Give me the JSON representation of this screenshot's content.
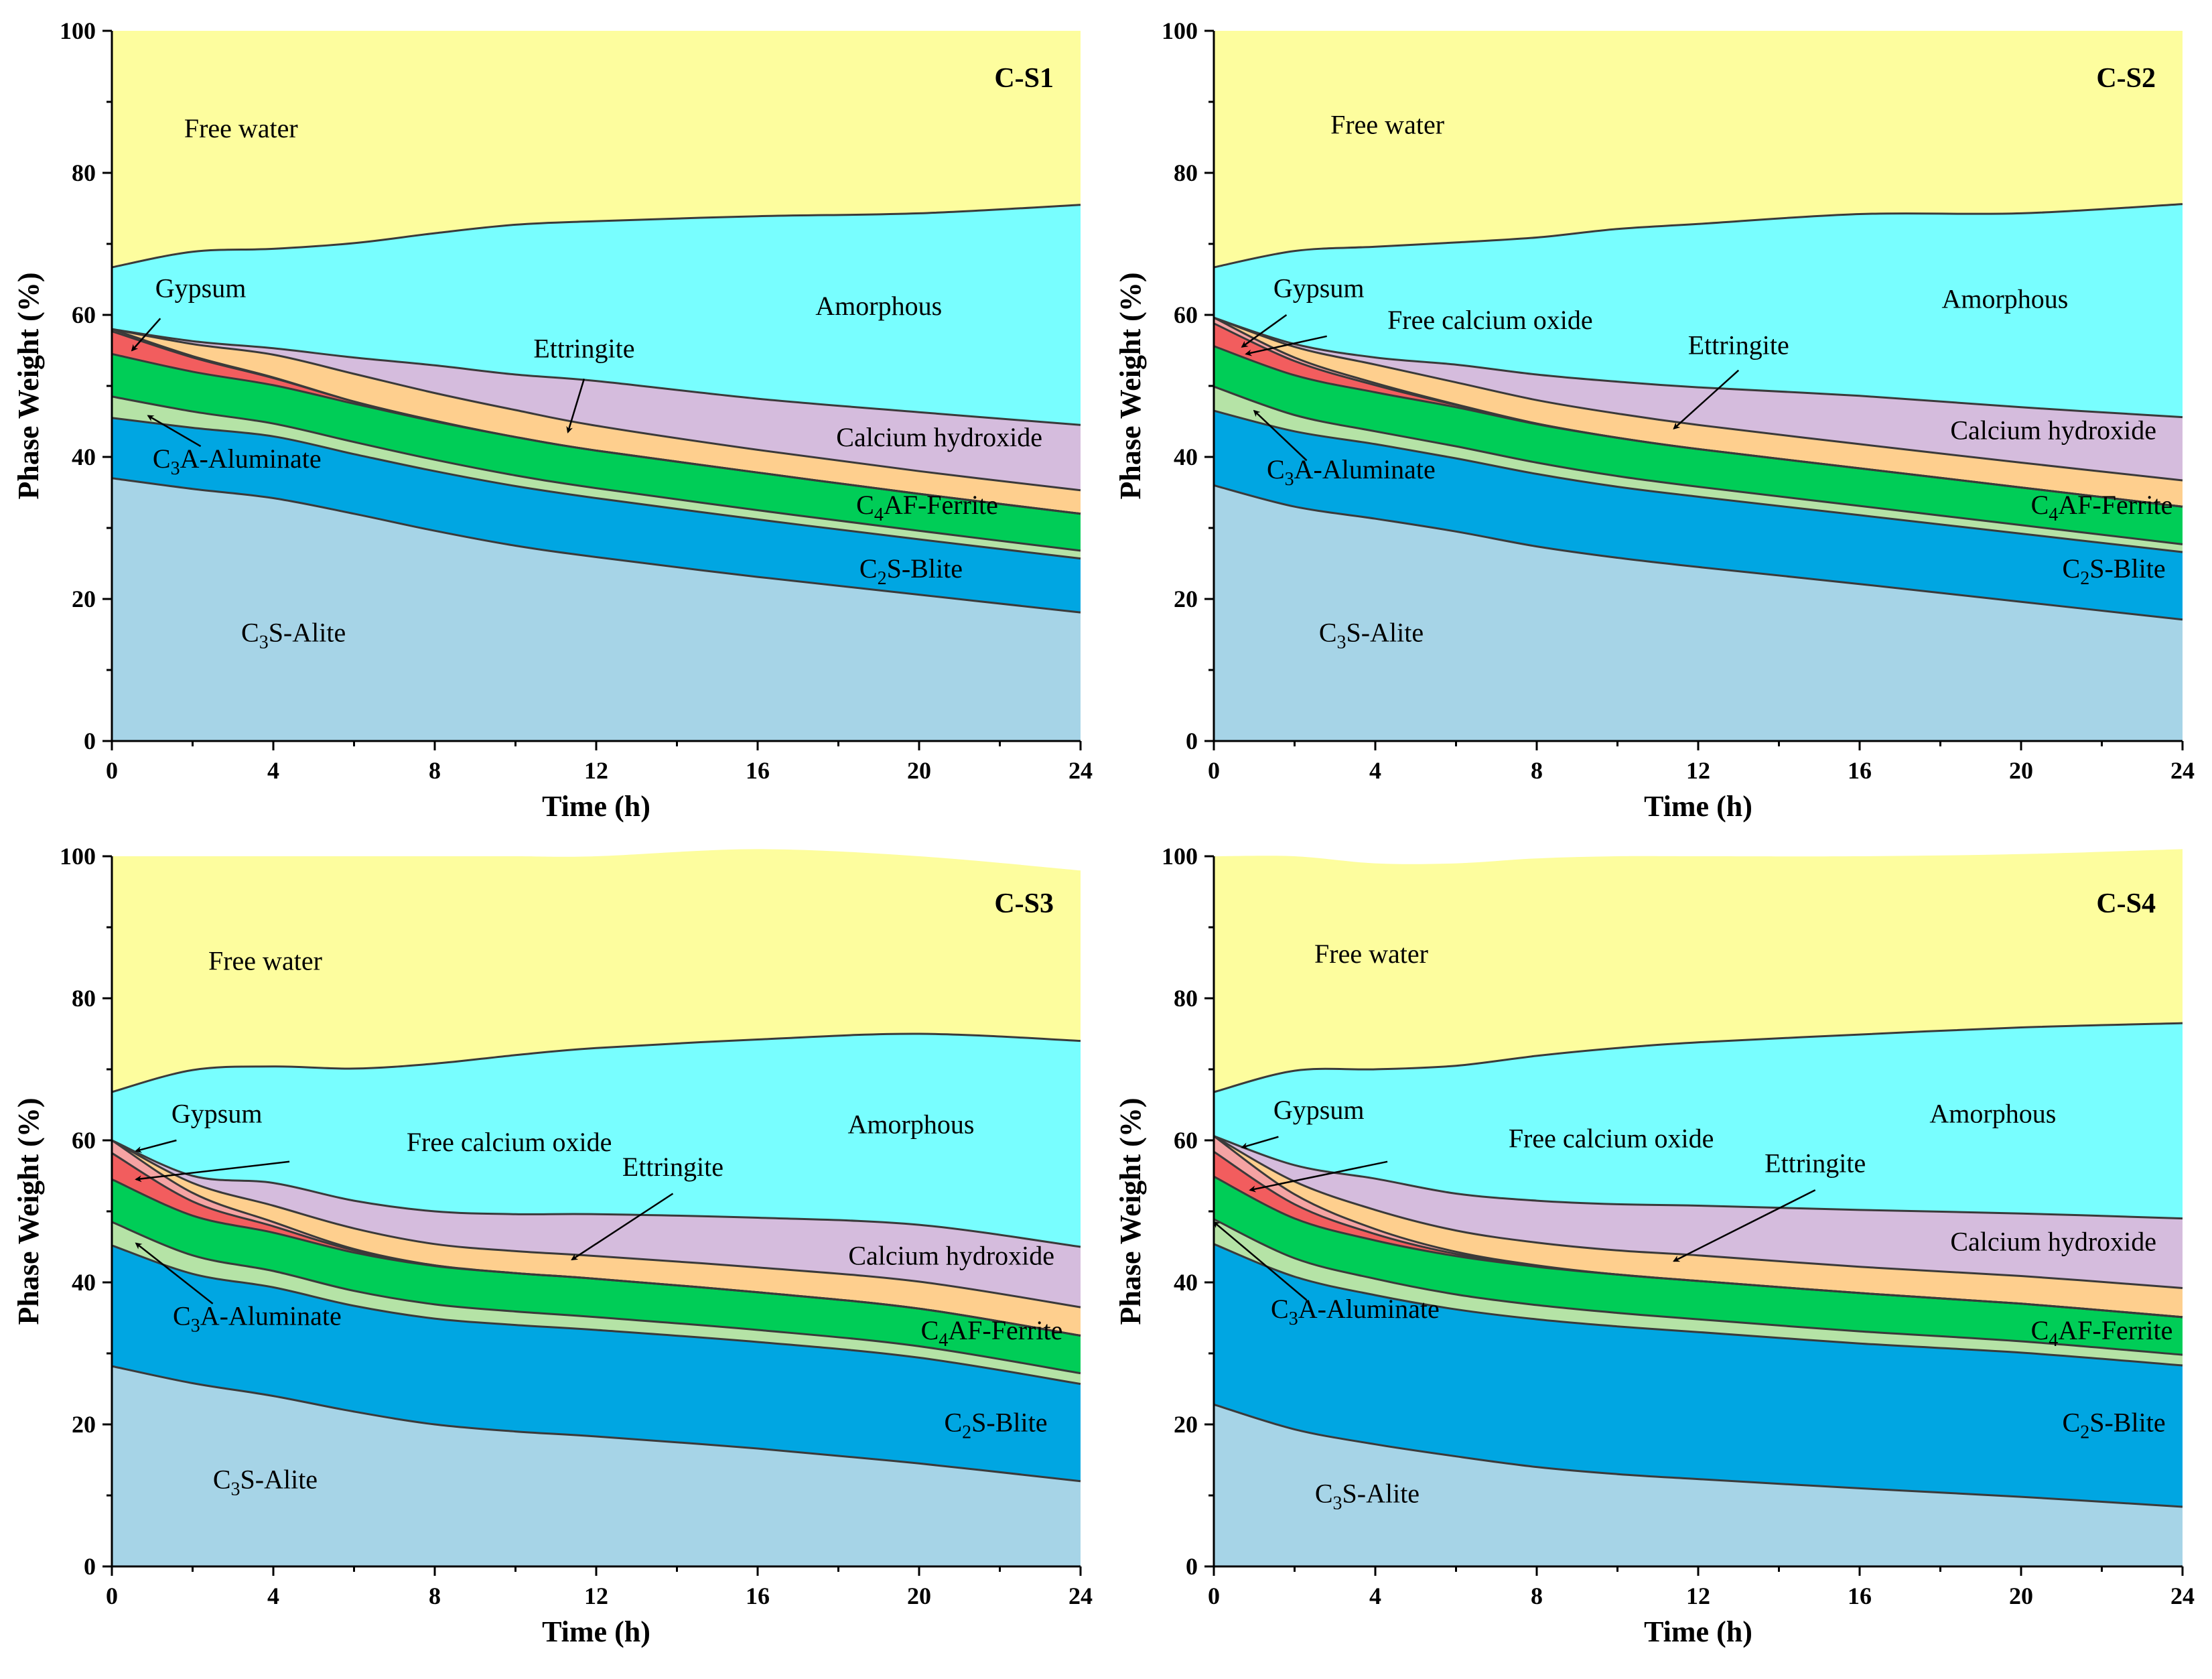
{
  "chart_data": [
    {
      "type": "area",
      "title": "C-S1",
      "xlabel": "Time (h)",
      "ylabel": "Phase Weight (%)",
      "xlim": [
        0,
        24
      ],
      "ylim": [
        0,
        100
      ],
      "xticks": [
        0,
        4,
        8,
        12,
        16,
        20,
        24
      ],
      "yticks": [
        0,
        20,
        40,
        60,
        80,
        100
      ],
      "x": [
        0,
        2,
        4,
        6,
        8,
        10,
        12,
        16,
        20,
        24
      ],
      "series": [
        {
          "name": "C3S-Alite",
          "color": "#a6d4e7",
          "values": [
            37,
            35.5,
            34.2,
            32,
            29.6,
            27.5,
            25.9,
            23.1,
            20.6,
            18.1
          ]
        },
        {
          "name": "C2S-Blite",
          "color": "#00a6e2",
          "values": [
            8.5,
            8.6,
            8.7,
            8.4,
            8.4,
            8.4,
            8.3,
            8.1,
            7.8,
            7.6
          ]
        },
        {
          "name": "C3A-Aluminate",
          "color": "#b5e3a6",
          "values": [
            3,
            2.3,
            1.8,
            1.7,
            1.6,
            1.5,
            1.4,
            1.3,
            1.2,
            1.1
          ]
        },
        {
          "name": "C4AF-Ferrite",
          "color": "#00cd57",
          "values": [
            6,
            5.6,
            5.4,
            5.4,
            5.4,
            5.4,
            5.3,
            5.3,
            5.2,
            5.2
          ]
        },
        {
          "name": "Gypsum",
          "color": "#f25d5e",
          "values": [
            3.2,
            2.0,
            1.0,
            0.3,
            0.1,
            0,
            0,
            0,
            0,
            0
          ]
        },
        {
          "name": "Free calcium oxide",
          "color": "#f5a3a3",
          "values": [
            0.3,
            0.2,
            0.1,
            0,
            0,
            0,
            0,
            0,
            0,
            0
          ]
        },
        {
          "name": "Ettringite",
          "color": "#fecf8e",
          "values": [
            0,
            1.7,
            3.2,
            3.9,
            3.9,
            3.8,
            3.5,
            3.2,
            3.2,
            3.3
          ]
        },
        {
          "name": "Calcium hydroxide",
          "color": "#d5bcdd",
          "values": [
            0,
            0.4,
            0.9,
            2.3,
            3.9,
            5.0,
            6.3,
            7.2,
            8.3,
            9.2
          ]
        },
        {
          "name": "Amorphous",
          "color": "#78feff",
          "values": [
            8.7,
            12.6,
            14.0,
            16.1,
            18.6,
            21.1,
            22.5,
            25.7,
            28.0,
            31
          ]
        },
        {
          "name": "Free water",
          "color": "#fdfd9e",
          "values": [
            33.3,
            31.1,
            30.7,
            29.9,
            28.5,
            27.3,
            26.8,
            26.1,
            25.7,
            24.5
          ]
        }
      ],
      "annotations": [
        "Free water",
        "Gypsum",
        "Amorphous",
        "Ettringite",
        "Calcium hydroxide",
        "C3A-Aluminate",
        "C4AF-Ferrite",
        "C2S-Blite",
        "C3S-Alite"
      ]
    },
    {
      "type": "area",
      "title": "C-S2",
      "xlabel": "Time (h)",
      "ylabel": "Phase Weight (%)",
      "xlim": [
        0,
        24
      ],
      "ylim": [
        0,
        100
      ],
      "xticks": [
        0,
        4,
        8,
        12,
        16,
        20,
        24
      ],
      "yticks": [
        0,
        20,
        40,
        60,
        80,
        100
      ],
      "x": [
        0,
        2,
        4,
        6,
        8,
        10,
        12,
        16,
        20,
        24
      ],
      "series": [
        {
          "name": "C3S-Alite",
          "color": "#a6d4e7",
          "values": [
            36,
            33,
            31.3,
            29.5,
            27.4,
            25.8,
            24.5,
            22.1,
            19.6,
            17.1
          ]
        },
        {
          "name": "C2S-Blite",
          "color": "#00a6e2",
          "values": [
            10.5,
            10.6,
            10.5,
            10.3,
            10.2,
            10.0,
            9.9,
            9.7,
            9.6,
            9.5
          ]
        },
        {
          "name": "C3A-Aluminate",
          "color": "#b5e3a6",
          "values": [
            3.4,
            2.3,
            1.8,
            1.7,
            1.6,
            1.5,
            1.4,
            1.3,
            1.2,
            1.1
          ]
        },
        {
          "name": "C4AF-Ferrite",
          "color": "#00cd57",
          "values": [
            5.7,
            5.6,
            5.5,
            5.5,
            5.4,
            5.4,
            5.3,
            5.3,
            5.3,
            5.3
          ]
        },
        {
          "name": "Gypsum",
          "color": "#f25d5e",
          "values": [
            3.2,
            2.0,
            1.0,
            0.3,
            0.1,
            0,
            0,
            0,
            0,
            0
          ]
        },
        {
          "name": "Free calcium oxide",
          "color": "#f5a3a3",
          "values": [
            0.8,
            0.5,
            0.3,
            0.1,
            0,
            0,
            0,
            0,
            0,
            0
          ]
        },
        {
          "name": "Ettringite",
          "color": "#fecf8e",
          "values": [
            0,
            1.5,
            2.6,
            3.1,
            3.3,
            3.4,
            3.4,
            3.4,
            3.5,
            3.7
          ]
        },
        {
          "name": "Calcium hydroxide",
          "color": "#d5bcdd",
          "values": [
            0,
            0.4,
            1.0,
            2.5,
            3.6,
            4.5,
            5.3,
            6.8,
            7.8,
            8.9
          ]
        },
        {
          "name": "Amorphous",
          "color": "#78feff",
          "values": [
            7.1,
            13.1,
            15.6,
            17.2,
            19.3,
            21.5,
            23.0,
            25.6,
            27.3,
            30
          ]
        },
        {
          "name": "Free water",
          "color": "#fdfd9e",
          "values": [
            33.3,
            31.0,
            30.4,
            29.8,
            29.1,
            27.9,
            27.2,
            25.8,
            25.7,
            24.4
          ]
        }
      ],
      "annotations": [
        "Free water",
        "Gypsum",
        "Free calcium oxide",
        "Amorphous",
        "Ettringite",
        "Calcium hydroxide",
        "C3A-Aluminate",
        "C4AF-Ferrite",
        "C2S-Blite",
        "C3S-Alite"
      ]
    },
    {
      "type": "area",
      "title": "C-S3",
      "xlabel": "Time (h)",
      "ylabel": "Phase Weight (%)",
      "xlim": [
        0,
        24
      ],
      "ylim": [
        0,
        100
      ],
      "xticks": [
        0,
        4,
        8,
        12,
        16,
        20,
        24
      ],
      "yticks": [
        0,
        20,
        40,
        60,
        80,
        100
      ],
      "x": [
        0,
        2,
        4,
        6,
        8,
        10,
        12,
        16,
        20,
        24
      ],
      "series": [
        {
          "name": "C3S-Alite",
          "color": "#a6d4e7",
          "values": [
            28.2,
            25.8,
            24.0,
            21.8,
            20.0,
            19.0,
            18.3,
            16.6,
            14.5,
            12.0
          ]
        },
        {
          "name": "C2S-Blite",
          "color": "#00a6e2",
          "values": [
            17.0,
            15.4,
            15.3,
            14.9,
            14.9,
            15.0,
            15.0,
            15.0,
            14.9,
            13.7
          ]
        },
        {
          "name": "C3A-Aluminate",
          "color": "#b5e3a6",
          "values": [
            3.3,
            2.6,
            2.3,
            2.1,
            2.0,
            1.9,
            1.8,
            1.7,
            1.6,
            1.5
          ]
        },
        {
          "name": "C4AF-Ferrite",
          "color": "#00cd57",
          "values": [
            6.0,
            5.6,
            5.4,
            5.4,
            5.4,
            5.4,
            5.4,
            5.3,
            5.3,
            5.3
          ]
        },
        {
          "name": "Gypsum",
          "color": "#f25d5e",
          "values": [
            3.7,
            2.0,
            0.9,
            0.3,
            0.1,
            0,
            0,
            0,
            0,
            0
          ]
        },
        {
          "name": "Free calcium oxide",
          "color": "#f5a3a3",
          "values": [
            1.8,
            1.2,
            0.6,
            0.2,
            0,
            0,
            0,
            0,
            0,
            0
          ]
        },
        {
          "name": "Ettringite",
          "color": "#fecf8e",
          "values": [
            0,
            1.4,
            2.3,
            2.9,
            3.0,
            3.1,
            3.2,
            3.5,
            3.8,
            4.0
          ]
        },
        {
          "name": "Calcium hydroxide",
          "color": "#d5bcdd",
          "values": [
            0,
            1.0,
            3.2,
            3.9,
            4.6,
            5.2,
            5.9,
            7.0,
            8.0,
            8.5
          ]
        },
        {
          "name": "Amorphous",
          "color": "#78feff",
          "values": [
            6.8,
            14.9,
            16.4,
            18.6,
            20.8,
            22.4,
            23.4,
            25.1,
            26.9,
            29.0
          ]
        },
        {
          "name": "Free water",
          "color": "#fdfd9e",
          "values": [
            33.2,
            30.1,
            29.6,
            29.9,
            29.2,
            28.0,
            27.0,
            26.8,
            25.0,
            24.0
          ]
        }
      ],
      "annotations": [
        "Free water",
        "Gypsum",
        "Free calcium oxide",
        "Amorphous",
        "Ettringite",
        "Calcium hydroxide",
        "C3A-Aluminate",
        "C4AF-Ferrite",
        "C2S-Blite",
        "C3S-Alite"
      ]
    },
    {
      "type": "area",
      "title": "C-S4",
      "xlabel": "Time (h)",
      "ylabel": "Phase Weight (%)",
      "xlim": [
        0,
        24
      ],
      "ylim": [
        0,
        100
      ],
      "xticks": [
        0,
        4,
        8,
        12,
        16,
        20,
        24
      ],
      "yticks": [
        0,
        20,
        40,
        60,
        80,
        100
      ],
      "x": [
        0,
        2,
        4,
        6,
        8,
        10,
        12,
        16,
        20,
        24
      ],
      "series": [
        {
          "name": "C3S-Alite",
          "color": "#a6d4e7",
          "values": [
            22.8,
            19.3,
            17.2,
            15.5,
            14.0,
            13.0,
            12.3,
            11.0,
            9.8,
            8.4
          ]
        },
        {
          "name": "C2S-Blite",
          "color": "#00a6e2",
          "values": [
            22.6,
            21.5,
            21.0,
            20.7,
            20.8,
            20.8,
            20.7,
            20.4,
            20.3,
            19.9
          ]
        },
        {
          "name": "C3A-Aluminate",
          "color": "#b5e3a6",
          "values": [
            3.5,
            2.6,
            2.3,
            2.1,
            2.0,
            1.9,
            1.8,
            1.7,
            1.6,
            1.5
          ]
        },
        {
          "name": "C4AF-Ferrite",
          "color": "#00cd57",
          "values": [
            6.0,
            5.6,
            5.4,
            5.4,
            5.4,
            5.4,
            5.4,
            5.4,
            5.3,
            5.3
          ]
        },
        {
          "name": "Gypsum",
          "color": "#f25d5e",
          "values": [
            3.5,
            2.0,
            0.9,
            0.3,
            0.1,
            0,
            0,
            0,
            0,
            0
          ]
        },
        {
          "name": "Free calcium oxide",
          "color": "#f5a3a3",
          "values": [
            2.2,
            1.4,
            0.7,
            0.3,
            0.1,
            0,
            0,
            0,
            0,
            0
          ]
        },
        {
          "name": "Ettringite",
          "color": "#fecf8e",
          "values": [
            0,
            1.8,
            2.7,
            3.0,
            3.2,
            3.4,
            3.6,
            3.7,
            3.9,
            4.1
          ]
        },
        {
          "name": "Calcium hydroxide",
          "color": "#d5bcdd",
          "values": [
            0,
            2.3,
            4.4,
            5.2,
            5.9,
            6.5,
            7.0,
            8.0,
            8.8,
            9.8
          ]
        },
        {
          "name": "Amorphous",
          "color": "#78feff",
          "values": [
            6.2,
            13.3,
            15.4,
            18.0,
            20.4,
            22.0,
            23.0,
            24.7,
            26.2,
            27.5
          ]
        },
        {
          "name": "Free water",
          "color": "#fdfd9e",
          "values": [
            33.2,
            30.2,
            29.0,
            28.5,
            27.8,
            27.0,
            26.2,
            25.1,
            24.4,
            24.5
          ]
        }
      ],
      "annotations": [
        "Free water",
        "Gypsum",
        "Free calcium oxide",
        "Amorphous",
        "Ettringite",
        "Calcium hydroxide",
        "C3A-Aluminate",
        "C4AF-Ferrite",
        "C2S-Blite",
        "C3S-Alite"
      ]
    }
  ],
  "labels": {
    "free_water": "Free water",
    "amorphous": "Amorphous",
    "gypsum": "Gypsum",
    "free_calcium_oxide": "Free calcium oxide",
    "ettringite": "Ettringite",
    "calcium_hydroxide": "Calcium hydroxide",
    "aluminate_pre": "C",
    "aluminate_sub": "3",
    "aluminate_post": "A-Aluminate",
    "ferrite_pre": "C",
    "ferrite_sub": "4",
    "ferrite_post": "AF-Ferrite",
    "blite_pre": "C",
    "blite_sub": "2",
    "blite_post": "S-Blite",
    "alite_pre": "C",
    "alite_sub": "3",
    "alite_post": "S-Alite"
  }
}
